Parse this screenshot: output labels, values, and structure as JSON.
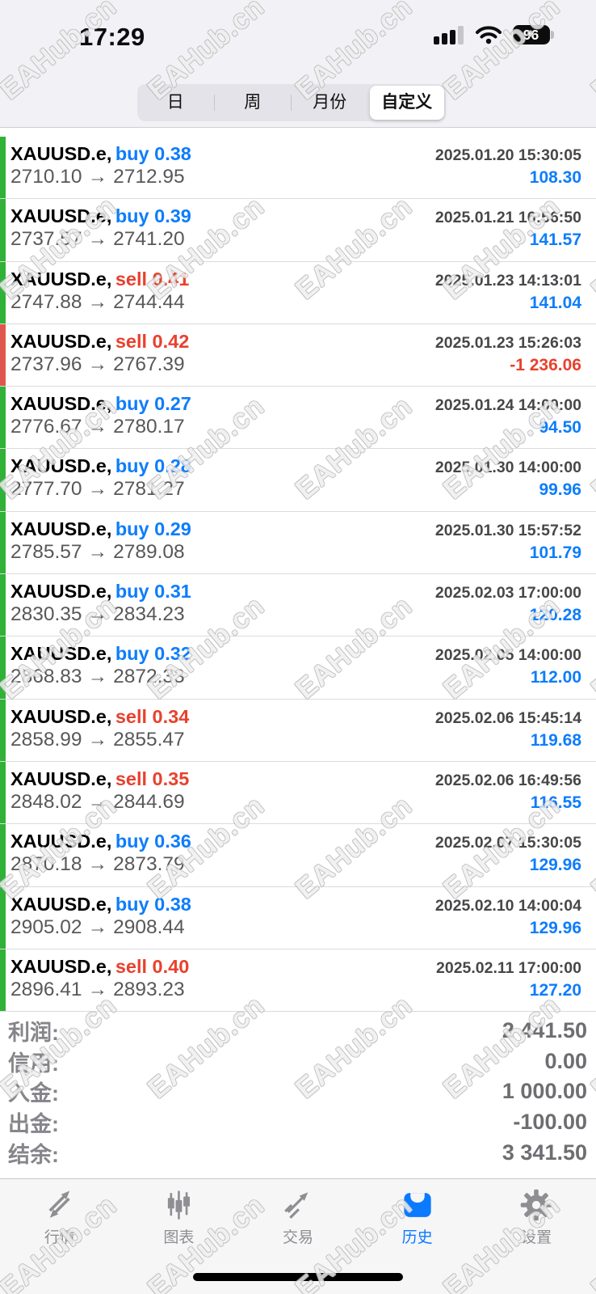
{
  "status_bar": {
    "time": "17:29",
    "battery_percent": "96"
  },
  "filter_tabs": {
    "items": [
      {
        "label": "日",
        "selected": false
      },
      {
        "label": "周",
        "selected": false
      },
      {
        "label": "月份",
        "selected": false
      },
      {
        "label": "自定义",
        "selected": true
      }
    ]
  },
  "ui": {
    "arrow": "→"
  },
  "trades": [
    {
      "symbol": "XAUUSD.e,",
      "side": "buy",
      "volume": "0.38",
      "time": "2025.01.20 15:30:05",
      "open": "2710.10",
      "close": "2712.95",
      "profit": "108.30",
      "result": "win"
    },
    {
      "symbol": "XAUUSD.e,",
      "side": "buy",
      "volume": "0.39",
      "time": "2025.01.21 16:56:50",
      "open": "2737.57",
      "close": "2741.20",
      "profit": "141.57",
      "result": "win"
    },
    {
      "symbol": "XAUUSD.e,",
      "side": "sell",
      "volume": "0.41",
      "time": "2025.01.23 14:13:01",
      "open": "2747.88",
      "close": "2744.44",
      "profit": "141.04",
      "result": "win"
    },
    {
      "symbol": "XAUUSD.e,",
      "side": "sell",
      "volume": "0.42",
      "time": "2025.01.23 15:26:03",
      "open": "2737.96",
      "close": "2767.39",
      "profit": "-1 236.06",
      "result": "loss"
    },
    {
      "symbol": "XAUUSD.e,",
      "side": "buy",
      "volume": "0.27",
      "time": "2025.01.24 14:00:00",
      "open": "2776.67",
      "close": "2780.17",
      "profit": "94.50",
      "result": "win"
    },
    {
      "symbol": "XAUUSD.e,",
      "side": "buy",
      "volume": "0.28",
      "time": "2025.01.30 14:00:00",
      "open": "2777.70",
      "close": "2781.27",
      "profit": "99.96",
      "result": "win"
    },
    {
      "symbol": "XAUUSD.e,",
      "side": "buy",
      "volume": "0.29",
      "time": "2025.01.30 15:57:52",
      "open": "2785.57",
      "close": "2789.08",
      "profit": "101.79",
      "result": "win"
    },
    {
      "symbol": "XAUUSD.e,",
      "side": "buy",
      "volume": "0.31",
      "time": "2025.02.03 17:00:00",
      "open": "2830.35",
      "close": "2834.23",
      "profit": "120.28",
      "result": "win"
    },
    {
      "symbol": "XAUUSD.e,",
      "side": "buy",
      "volume": "0.32",
      "time": "2025.02.05 14:00:00",
      "open": "2868.83",
      "close": "2872.33",
      "profit": "112.00",
      "result": "win"
    },
    {
      "symbol": "XAUUSD.e,",
      "side": "sell",
      "volume": "0.34",
      "time": "2025.02.06 15:45:14",
      "open": "2858.99",
      "close": "2855.47",
      "profit": "119.68",
      "result": "win"
    },
    {
      "symbol": "XAUUSD.e,",
      "side": "sell",
      "volume": "0.35",
      "time": "2025.02.06 16:49:56",
      "open": "2848.02",
      "close": "2844.69",
      "profit": "116.55",
      "result": "win"
    },
    {
      "symbol": "XAUUSD.e,",
      "side": "buy",
      "volume": "0.36",
      "time": "2025.02.07 15:30:05",
      "open": "2870.18",
      "close": "2873.79",
      "profit": "129.96",
      "result": "win"
    },
    {
      "symbol": "XAUUSD.e,",
      "side": "buy",
      "volume": "0.38",
      "time": "2025.02.10 14:00:04",
      "open": "2905.02",
      "close": "2908.44",
      "profit": "129.96",
      "result": "win"
    },
    {
      "symbol": "XAUUSD.e,",
      "side": "sell",
      "volume": "0.40",
      "time": "2025.02.11 17:00:00",
      "open": "2896.41",
      "close": "2893.23",
      "profit": "127.20",
      "result": "win"
    }
  ],
  "summary": {
    "rows": [
      {
        "label": "利润:",
        "value": "2 441.50"
      },
      {
        "label": "信用:",
        "value": "0.00"
      },
      {
        "label": "入金:",
        "value": "1 000.00"
      },
      {
        "label": "出金:",
        "value": "-100.00"
      },
      {
        "label": "结余:",
        "value": "3 341.50"
      }
    ]
  },
  "tab_bar": {
    "items": [
      {
        "label": "行情",
        "icon": "quotes-icon",
        "active": false
      },
      {
        "label": "图表",
        "icon": "charts-icon",
        "active": false
      },
      {
        "label": "交易",
        "icon": "trade-icon",
        "active": false
      },
      {
        "label": "历史",
        "icon": "history-icon",
        "active": true
      },
      {
        "label": "设置",
        "icon": "settings-icon",
        "active": false
      }
    ]
  },
  "watermark": {
    "text": "EAHub.cn"
  },
  "colors": {
    "buy_blue": "#0d7dfc",
    "sell_red": "#e8412d",
    "win_strip_green": "#2fb237",
    "loss_strip_red": "#df574c",
    "active_tab_blue": "#0a7aff"
  }
}
